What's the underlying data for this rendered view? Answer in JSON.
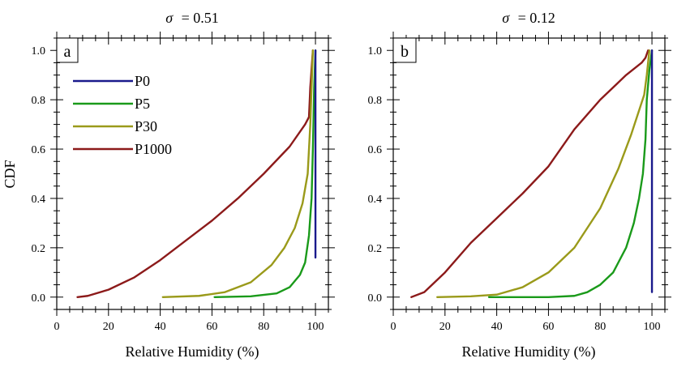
{
  "chart_data": [
    {
      "type": "line",
      "panel_label": "a",
      "sigma_symbol": "σ",
      "title_value": "= 0.51",
      "xlabel": "Relative Humidity (%)",
      "ylabel": "CDF",
      "xlim": [
        0,
        105
      ],
      "ylim": [
        -0.05,
        1.05
      ],
      "xticks": [
        0,
        20,
        40,
        60,
        80,
        100
      ],
      "yticks": [
        0.0,
        0.2,
        0.4,
        0.6,
        0.8,
        1.0
      ],
      "legend": true,
      "legend_position": "top-left",
      "series": [
        {
          "name": "P0",
          "color": "#1a1a8c",
          "points": [
            [
              100,
              0.16
            ],
            [
              100,
              1.0
            ]
          ]
        },
        {
          "name": "P5",
          "color": "#1a9a1a",
          "points": [
            [
              61,
              0.0
            ],
            [
              75,
              0.003
            ],
            [
              85,
              0.015
            ],
            [
              90,
              0.04
            ],
            [
              94,
              0.09
            ],
            [
              96,
              0.14
            ],
            [
              97.5,
              0.25
            ],
            [
              98.5,
              0.4
            ],
            [
              99,
              0.6
            ],
            [
              99.5,
              0.85
            ],
            [
              100,
              1.0
            ]
          ]
        },
        {
          "name": "P30",
          "color": "#9a9a1a",
          "points": [
            [
              41,
              0.0
            ],
            [
              55,
              0.005
            ],
            [
              65,
              0.02
            ],
            [
              75,
              0.06
            ],
            [
              83,
              0.13
            ],
            [
              88,
              0.2
            ],
            [
              92,
              0.28
            ],
            [
              95,
              0.38
            ],
            [
              97,
              0.5
            ],
            [
              98,
              0.7
            ],
            [
              99,
              1.0
            ]
          ]
        },
        {
          "name": "P1000",
          "color": "#8c1a1a",
          "points": [
            [
              8,
              0.0
            ],
            [
              12,
              0.005
            ],
            [
              20,
              0.03
            ],
            [
              30,
              0.08
            ],
            [
              40,
              0.15
            ],
            [
              50,
              0.23
            ],
            [
              60,
              0.31
            ],
            [
              70,
              0.4
            ],
            [
              80,
              0.5
            ],
            [
              90,
              0.61
            ],
            [
              96,
              0.7
            ],
            [
              97.5,
              0.73
            ],
            [
              98,
              0.85
            ],
            [
              99,
              1.0
            ]
          ]
        }
      ]
    },
    {
      "type": "line",
      "panel_label": "b",
      "sigma_symbol": "σ",
      "title_value": "= 0.12",
      "xlabel": "Relative Humidity (%)",
      "ylabel": "",
      "xlim": [
        0,
        105
      ],
      "ylim": [
        -0.05,
        1.05
      ],
      "xticks": [
        0,
        20,
        40,
        60,
        80,
        100
      ],
      "yticks": [
        0.0,
        0.2,
        0.4,
        0.6,
        0.8,
        1.0
      ],
      "legend": false,
      "series": [
        {
          "name": "P0",
          "color": "#1a1a8c",
          "points": [
            [
              100,
              0.02
            ],
            [
              100,
              1.0
            ]
          ]
        },
        {
          "name": "P5",
          "color": "#1a9a1a",
          "points": [
            [
              37,
              0.0
            ],
            [
              60,
              0.0
            ],
            [
              70,
              0.005
            ],
            [
              75,
              0.02
            ],
            [
              80,
              0.05
            ],
            [
              85,
              0.1
            ],
            [
              90,
              0.2
            ],
            [
              93,
              0.3
            ],
            [
              95,
              0.4
            ],
            [
              96.5,
              0.5
            ],
            [
              97.5,
              0.64
            ],
            [
              98,
              0.8
            ],
            [
              99,
              0.92
            ],
            [
              100,
              1.0
            ]
          ]
        },
        {
          "name": "P30",
          "color": "#9a9a1a",
          "points": [
            [
              17,
              0.0
            ],
            [
              30,
              0.003
            ],
            [
              40,
              0.01
            ],
            [
              50,
              0.04
            ],
            [
              60,
              0.1
            ],
            [
              70,
              0.2
            ],
            [
              80,
              0.36
            ],
            [
              87,
              0.52
            ],
            [
              92,
              0.66
            ],
            [
              97,
              0.82
            ],
            [
              98,
              0.9
            ],
            [
              99,
              1.0
            ]
          ]
        },
        {
          "name": "P1000",
          "color": "#8c1a1a",
          "points": [
            [
              7,
              0.0
            ],
            [
              12,
              0.02
            ],
            [
              20,
              0.1
            ],
            [
              30,
              0.22
            ],
            [
              40,
              0.32
            ],
            [
              50,
              0.42
            ],
            [
              60,
              0.53
            ],
            [
              70,
              0.68
            ],
            [
              80,
              0.8
            ],
            [
              90,
              0.9
            ],
            [
              96,
              0.95
            ],
            [
              97.5,
              0.97
            ],
            [
              98.5,
              1.0
            ]
          ]
        }
      ]
    }
  ]
}
